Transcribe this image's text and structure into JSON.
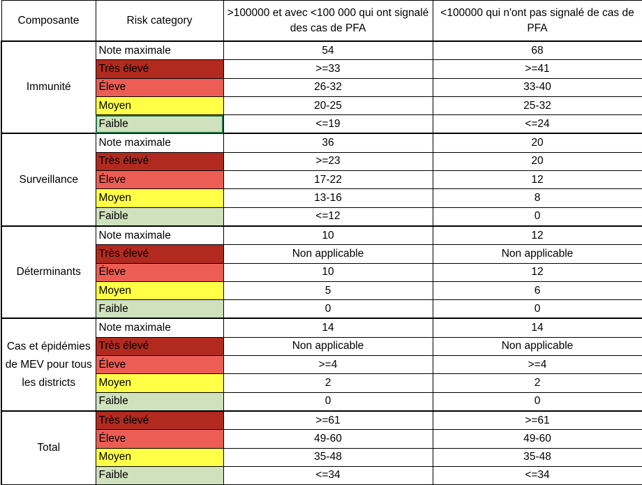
{
  "headers": {
    "composante": "Composante",
    "risk": "Risk category",
    "col_a": ">100000 et avec <100 000 qui ont signalé des cas de PFA",
    "col_b": "<100000 qui n'ont pas signalé de cas de PFA"
  },
  "colors": {
    "note_maximale": "#ffffff",
    "tres_eleve": "#b22a1f",
    "eleve": "#ec5e55",
    "moyen": "#ffff47",
    "faible": "#cfe1bd"
  },
  "groups": [
    {
      "name": "Immunité",
      "rows": [
        {
          "cat": "Note maximale",
          "key": "max",
          "a": "54",
          "b": "68"
        },
        {
          "cat": "Très élevé",
          "key": "tres",
          "a": ">=33",
          "b": ">=41"
        },
        {
          "cat": "Éleve",
          "key": "eleve",
          "a": "26-32",
          "b": "33-40"
        },
        {
          "cat": "Moyen",
          "key": "moyen",
          "a": "20-25",
          "b": "25-32"
        },
        {
          "cat": "Faible",
          "key": "faible",
          "a": "<=19",
          "b": "<=24"
        }
      ]
    },
    {
      "name": "Surveillance",
      "rows": [
        {
          "cat": "Note maximale",
          "key": "max",
          "a": "36",
          "b": "20"
        },
        {
          "cat": "Très élevé",
          "key": "tres",
          "a": ">=23",
          "b": "20"
        },
        {
          "cat": "Éleve",
          "key": "eleve",
          "a": "17-22",
          "b": "12"
        },
        {
          "cat": "Moyen",
          "key": "moyen",
          "a": "13-16",
          "b": "8"
        },
        {
          "cat": "Faible",
          "key": "faible",
          "a": "<=12",
          "b": "0"
        }
      ]
    },
    {
      "name": "Déterminants",
      "rows": [
        {
          "cat": "Note maximale",
          "key": "max",
          "a": "10",
          "b": "12"
        },
        {
          "cat": "Très élevé",
          "key": "tres",
          "a": "Non applicable",
          "b": "Non applicable"
        },
        {
          "cat": "Éleve",
          "key": "eleve",
          "a": "10",
          "b": "12"
        },
        {
          "cat": "Moyen",
          "key": "moyen",
          "a": "5",
          "b": "6"
        },
        {
          "cat": "Faible",
          "key": "faible",
          "a": "0",
          "b": "0"
        }
      ]
    },
    {
      "name": "Cas et épidémies de MEV pour tous les districts",
      "rows": [
        {
          "cat": "Note maximale",
          "key": "max",
          "a": "14",
          "b": "14"
        },
        {
          "cat": "Très élevé",
          "key": "tres",
          "a": "Non applicable",
          "b": "Non applicable"
        },
        {
          "cat": "Éleve",
          "key": "eleve",
          "a": ">=4",
          "b": ">=4"
        },
        {
          "cat": "Moyen",
          "key": "moyen",
          "a": "2",
          "b": "2"
        },
        {
          "cat": "Faible",
          "key": "faible",
          "a": "0",
          "b": "0"
        }
      ]
    },
    {
      "name": "Total",
      "rows": [
        {
          "cat": "Très élevé",
          "key": "tres",
          "a": ">=61",
          "b": ">=61"
        },
        {
          "cat": "Éleve",
          "key": "eleve",
          "a": "49-60",
          "b": "49-60"
        },
        {
          "cat": "Moyen",
          "key": "moyen",
          "a": "35-48",
          "b": "35-48"
        },
        {
          "cat": "Faible",
          "key": "faible",
          "a": "<=34",
          "b": "<=34"
        }
      ]
    }
  ]
}
